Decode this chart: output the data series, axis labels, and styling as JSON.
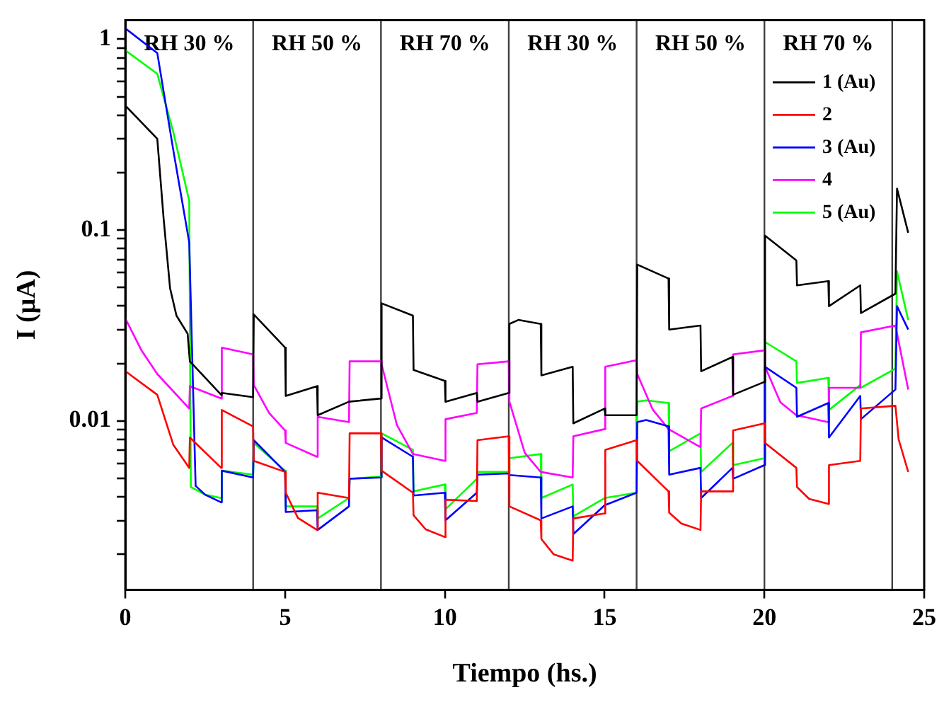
{
  "chart_data": {
    "type": "line",
    "xlabel": "Tiempo (hs.)",
    "ylabel": "I (μA)",
    "xlim": [
      0,
      25
    ],
    "xticks": [
      0,
      5,
      10,
      15,
      20,
      25
    ],
    "ylim": [
      0.0013,
      1.26
    ],
    "log": "y",
    "yticks": [
      {
        "value": 0.002,
        "label": null
      },
      {
        "value": 0.003,
        "label": null
      },
      {
        "value": 0.004,
        "label": null
      },
      {
        "value": 0.005,
        "label": null
      },
      {
        "value": 0.006,
        "label": null
      },
      {
        "value": 0.007,
        "label": null
      },
      {
        "value": 0.008,
        "label": null
      },
      {
        "value": 0.009,
        "label": null
      },
      0.01,
      {
        "value": 0.02,
        "label": null
      },
      {
        "value": 0.03,
        "label": null
      },
      {
        "value": 0.04,
        "label": null
      },
      {
        "value": 0.05,
        "label": null
      },
      {
        "value": 0.06,
        "label": null
      },
      {
        "value": 0.07,
        "label": null
      },
      {
        "value": 0.08,
        "label": null
      },
      {
        "value": 0.09,
        "label": null
      },
      0.1,
      {
        "value": 0.2,
        "label": null
      },
      {
        "value": 0.3,
        "label": null
      },
      {
        "value": 0.4,
        "label": null
      },
      {
        "value": 0.5,
        "label": null
      },
      {
        "value": 0.6,
        "label": null
      },
      {
        "value": 0.7,
        "label": null
      },
      {
        "value": 0.8,
        "label": null
      },
      {
        "value": 0.9,
        "label": null
      },
      1
    ],
    "grid": false,
    "legend": "top right",
    "marker": "none",
    "line_style": "solid",
    "ref_lines": [
      {
        "axis": "x",
        "value": 4,
        "color": "#404040"
      },
      {
        "axis": "x",
        "value": 8,
        "color": "#404040"
      },
      {
        "axis": "x",
        "value": 12,
        "color": "#404040"
      },
      {
        "axis": "x",
        "value": 16,
        "color": "#404040"
      },
      {
        "axis": "x",
        "value": 20,
        "color": "#404040"
      },
      {
        "axis": "x",
        "value": 24,
        "color": "#404040"
      }
    ],
    "annotations": [
      "RH 30 %",
      "RH 50 %",
      "RH 70 %",
      "RH 30 %",
      "RH 50 %",
      "RH 70 %"
    ],
    "series": [
      {
        "name": "1 (Au)",
        "color": "#000000",
        "x": [
          0,
          1,
          1.2,
          1.4,
          1.6,
          1.95,
          2.02,
          3,
          3.02,
          4,
          4.02,
          5,
          5.02,
          6,
          6.02,
          7,
          8,
          8.02,
          9,
          9.02,
          10,
          10.02,
          11,
          11.02,
          12,
          12.02,
          12.3,
          13,
          13.02,
          14,
          14.02,
          15,
          15.02,
          16,
          16.02,
          17,
          17.02,
          18,
          18.02,
          19,
          19.02,
          20,
          20.02,
          21,
          21.02,
          22,
          22.02,
          23,
          23.02,
          24.1,
          24.15,
          24.5
        ],
        "values": [
          0.449,
          0.301,
          0.114,
          0.0496,
          0.0356,
          0.0286,
          0.0205,
          0.0137,
          0.014,
          0.0133,
          0.0361,
          0.0242,
          0.0135,
          0.0152,
          0.0107,
          0.0126,
          0.0131,
          0.0413,
          0.0356,
          0.0185,
          0.0162,
          0.0126,
          0.014,
          0.0126,
          0.014,
          0.0322,
          0.0338,
          0.0322,
          0.0173,
          0.0192,
          0.0097,
          0.0116,
          0.0107,
          0.0107,
          0.0659,
          0.0557,
          0.0301,
          0.0316,
          0.0182,
          0.0216,
          0.0137,
          0.016,
          0.0935,
          0.0693,
          0.0513,
          0.054,
          0.0399,
          0.0513,
          0.0367,
          0.0464,
          0.165,
          0.0968
        ]
      },
      {
        "name": "2",
        "color": "#ff0000",
        "x": [
          0,
          1,
          1.5,
          2,
          2.02,
          3,
          3.02,
          4,
          4.02,
          5,
          5.02,
          5.4,
          6,
          6.02,
          7,
          7.02,
          8,
          8.02,
          9,
          9.02,
          9.4,
          10,
          10.02,
          11,
          11.02,
          12,
          12.02,
          13,
          13.02,
          13.4,
          14,
          14.02,
          15,
          15.02,
          16,
          16.02,
          17,
          17.02,
          17.4,
          18,
          18.02,
          19,
          19.02,
          20,
          20.02,
          21,
          21.02,
          21.4,
          22,
          22.02,
          23,
          23.02,
          24.1,
          24.2,
          24.5
        ],
        "values": [
          0.0182,
          0.0137,
          0.0075,
          0.00567,
          0.00818,
          0.00567,
          0.0114,
          0.00935,
          0.00617,
          0.0054,
          0.0042,
          0.0031,
          0.00268,
          0.0042,
          0.00394,
          0.0086,
          0.0086,
          0.00548,
          0.0042,
          0.0032,
          0.0027,
          0.00246,
          0.00386,
          0.0038,
          0.00792,
          0.0083,
          0.00356,
          0.00301,
          0.0024,
          0.002,
          0.00185,
          0.00308,
          0.00327,
          0.00705,
          0.00792,
          0.00617,
          0.00427,
          0.0033,
          0.0029,
          0.00268,
          0.00427,
          0.00427,
          0.0089,
          0.0097,
          0.00766,
          0.00567,
          0.0045,
          0.0039,
          0.00367,
          0.00586,
          0.00617,
          0.0116,
          0.012,
          0.008,
          0.0054
        ]
      },
      {
        "name": "3 (Au)",
        "color": "#0000ff",
        "x": [
          0,
          1,
          1.5,
          2,
          2.2,
          2.5,
          3,
          3.02,
          4,
          4.02,
          5,
          5.02,
          6,
          6.02,
          7,
          7.02,
          8,
          8.02,
          9,
          9.02,
          10,
          10.02,
          11,
          11.02,
          12,
          12.02,
          13,
          13.02,
          14,
          14.02,
          15,
          16,
          16.02,
          16.3,
          17,
          17.02,
          18,
          18.02,
          19,
          19.02,
          20,
          20.02,
          21,
          21.02,
          22,
          22.02,
          23,
          23.02,
          24.1,
          24.15,
          24.5
        ],
        "values": [
          1.14,
          0.847,
          0.263,
          0.0861,
          0.00456,
          0.0041,
          0.00374,
          0.00548,
          0.00505,
          0.00792,
          0.0054,
          0.00333,
          0.0034,
          0.00268,
          0.00356,
          0.00497,
          0.00505,
          0.00818,
          0.00648,
          0.00406,
          0.0042,
          0.00301,
          0.0042,
          0.00522,
          0.0053,
          0.0052,
          0.00505,
          0.00308,
          0.00356,
          0.00255,
          0.00361,
          0.0042,
          0.00984,
          0.0101,
          0.00935,
          0.00522,
          0.00567,
          0.00394,
          0.00567,
          0.00497,
          0.00586,
          0.0192,
          0.0149,
          0.0105,
          0.0124,
          0.00818,
          0.0135,
          0.0102,
          0.0146,
          0.0399,
          0.0301
        ]
      },
      {
        "name": "4",
        "color": "#ff00ff",
        "x": [
          0,
          0.5,
          1,
          2,
          2.02,
          3,
          3.02,
          4,
          4.02,
          4.5,
          5,
          5.02,
          6,
          6.02,
          7,
          7.02,
          8,
          8.02,
          8.5,
          9,
          10,
          10.02,
          11,
          11.02,
          12,
          12.02,
          12.5,
          13,
          14,
          14.02,
          15,
          15.02,
          16,
          16.02,
          16.5,
          17,
          18,
          18.02,
          19,
          19.02,
          20,
          20.02,
          20.5,
          21,
          22,
          22.02,
          23,
          23.02,
          24.1,
          24.5
        ],
        "values": [
          0.0344,
          0.0235,
          0.0176,
          0.0116,
          0.0152,
          0.0131,
          0.0242,
          0.0223,
          0.0154,
          0.011,
          0.0089,
          0.00766,
          0.00648,
          0.0105,
          0.00984,
          0.0205,
          0.0205,
          0.0198,
          0.0095,
          0.0067,
          0.00617,
          0.0102,
          0.011,
          0.0198,
          0.0205,
          0.0126,
          0.0068,
          0.0054,
          0.00505,
          0.0083,
          0.00905,
          0.0192,
          0.0208,
          0.0176,
          0.0115,
          0.00905,
          0.00728,
          0.0116,
          0.0135,
          0.0223,
          0.0234,
          0.0192,
          0.0125,
          0.0107,
          0.00984,
          0.0149,
          0.0149,
          0.0291,
          0.0316,
          0.0146
        ]
      },
      {
        "name": "5 (Au)",
        "color": "#00ff00",
        "x": [
          0,
          1,
          1.5,
          2,
          2.05,
          2.5,
          3,
          3.02,
          4,
          4.02,
          5,
          5.02,
          6,
          6.02,
          7,
          7.02,
          8,
          8.02,
          9,
          9.02,
          10,
          10.02,
          11,
          11.02,
          12,
          12.02,
          13,
          13.02,
          14,
          14.02,
          15,
          16,
          16.02,
          16.3,
          17,
          17.02,
          18,
          18.02,
          19,
          19.02,
          20,
          20.02,
          21,
          21.02,
          22,
          22.02,
          23,
          23.02,
          24.1,
          24.15,
          24.5
        ],
        "values": [
          0.875,
          0.659,
          0.327,
          0.142,
          0.0045,
          0.0041,
          0.00394,
          0.00548,
          0.00522,
          0.00766,
          0.00548,
          0.00356,
          0.00356,
          0.00308,
          0.00394,
          0.00497,
          0.0051,
          0.0086,
          0.00705,
          0.00427,
          0.00464,
          0.00344,
          0.00497,
          0.0054,
          0.0054,
          0.00637,
          0.0067,
          0.00394,
          0.00464,
          0.00316,
          0.00394,
          0.0042,
          0.0126,
          0.0128,
          0.0124,
          0.00693,
          0.0086,
          0.0054,
          0.00766,
          0.00586,
          0.00637,
          0.0259,
          0.0205,
          0.0158,
          0.0168,
          0.0114,
          0.0154,
          0.0149,
          0.0188,
          0.0607,
          0.0338
        ]
      }
    ]
  }
}
